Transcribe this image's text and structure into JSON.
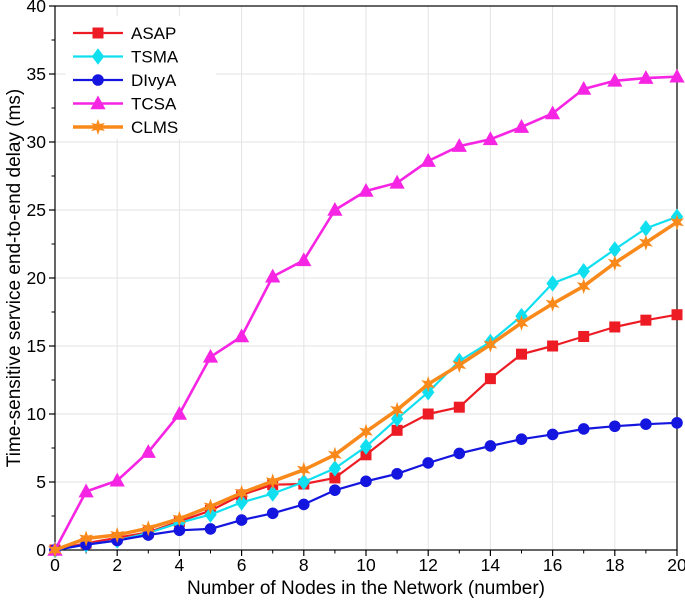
{
  "figure": {
    "xlabel": "Number of Nodes in the Network (number)",
    "ylabel": "Time-sensitive service end-to-end delay (ms)"
  },
  "chart_data": {
    "type": "line",
    "title": "",
    "xlabel": "Number of Nodes in the Network (number)",
    "ylabel": "Time-sensitive service end-to-end delay (ms)",
    "xlim": [
      0,
      20
    ],
    "ylim": [
      0,
      40
    ],
    "xticks": [
      0,
      2,
      4,
      6,
      8,
      10,
      12,
      14,
      16,
      18,
      20
    ],
    "yticks": [
      0,
      5,
      10,
      15,
      20,
      25,
      30,
      35,
      40
    ],
    "grid": true,
    "legend_position": "top-left-inside",
    "x": [
      0,
      1,
      2,
      3,
      4,
      5,
      6,
      7,
      8,
      9,
      10,
      11,
      12,
      13,
      14,
      15,
      16,
      17,
      18,
      19,
      20
    ],
    "series": [
      {
        "name": "ASAP",
        "color": "#ED1C24",
        "marker": "square",
        "values": [
          0,
          0.5,
          0.9,
          1.3,
          2.1,
          2.9,
          4.05,
          4.8,
          4.85,
          5.3,
          7.0,
          8.8,
          10.0,
          10.5,
          12.6,
          14.4,
          15.0,
          15.7,
          16.4,
          16.9,
          17.3
        ]
      },
      {
        "name": "TSMA",
        "color": "#10DFF0",
        "marker": "diamond",
        "values": [
          0,
          0.4,
          0.7,
          1.25,
          2.0,
          2.6,
          3.5,
          4.15,
          5.0,
          6.0,
          7.6,
          9.65,
          11.6,
          13.9,
          15.3,
          17.2,
          19.6,
          20.5,
          22.1,
          23.65,
          24.5
        ]
      },
      {
        "name": "DIvyA",
        "color": "#1515E0",
        "marker": "circle",
        "values": [
          0,
          0.4,
          0.7,
          1.1,
          1.45,
          1.55,
          2.2,
          2.7,
          3.35,
          4.4,
          5.05,
          5.6,
          6.4,
          7.1,
          7.65,
          8.15,
          8.5,
          8.9,
          9.1,
          9.25,
          9.35
        ]
      },
      {
        "name": "TCSA",
        "color": "#F625E3",
        "marker": "triangle-up",
        "values": [
          0,
          4.3,
          5.1,
          7.2,
          10.0,
          14.2,
          15.7,
          20.1,
          21.3,
          25.0,
          26.4,
          27.0,
          28.6,
          29.7,
          30.2,
          31.1,
          32.1,
          33.9,
          34.5,
          34.7,
          34.8
        ]
      },
      {
        "name": "CLMS",
        "color": "#F9891A",
        "marker": "hexagram",
        "values": [
          0,
          0.85,
          1.1,
          1.6,
          2.3,
          3.2,
          4.2,
          5.05,
          5.9,
          7.0,
          8.7,
          10.3,
          12.2,
          13.6,
          15.1,
          16.7,
          18.1,
          19.4,
          21.1,
          22.6,
          24.1
        ]
      }
    ]
  }
}
